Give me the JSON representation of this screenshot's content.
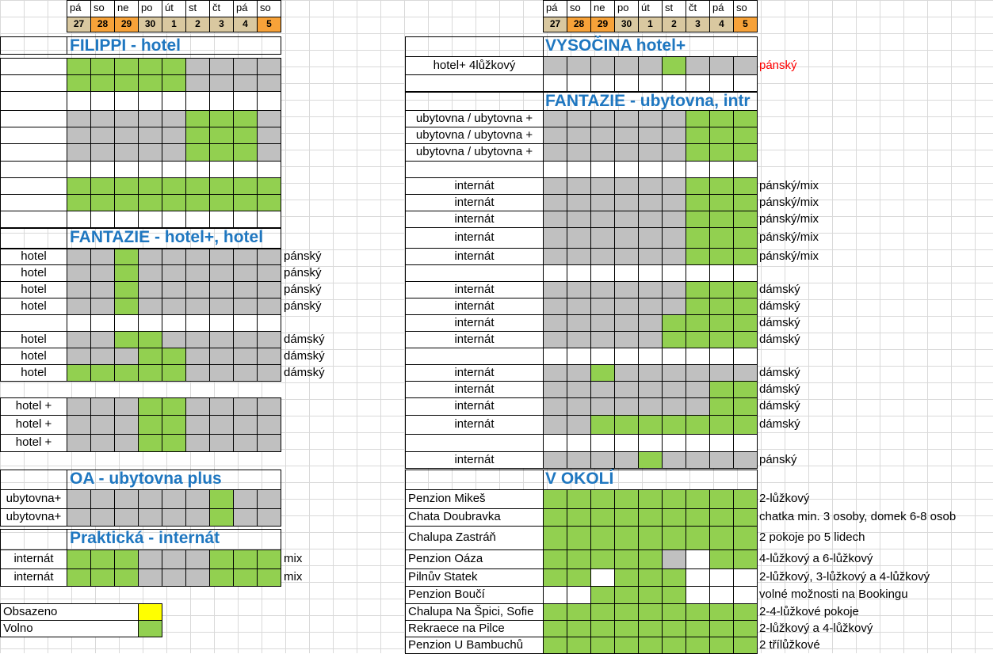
{
  "days": [
    "pá",
    "so",
    "ne",
    "po",
    "út",
    "st",
    "čt",
    "pá",
    "so"
  ],
  "dates": [
    "27",
    "28",
    "29",
    "30",
    "1",
    "2",
    "3",
    "4",
    "5"
  ],
  "date_colors": [
    "#d9c8a0",
    "#f7a239",
    "#f7a239",
    "#d9c8a0",
    "#d9c8a0",
    "#d9c8a0",
    "#d9c8a0",
    "#d9c8a0",
    "#f7a239"
  ],
  "left": {
    "h_filippi": "FILIPPI - hotel",
    "h_fantazie": "FANTAZIE - hotel+, hotel",
    "h_oa": "OA - ubytovna plus",
    "h_prakticka": "Praktická - internát",
    "rows": [
      {
        "label": "",
        "note": "",
        "cells": "ggggg....",
        "y": 73,
        "h": 21
      },
      {
        "label": "",
        "note": "",
        "cells": "ggggg....",
        "y": 94,
        "h": 21
      },
      {
        "label": "",
        "note": "",
        "cells": "wwwwwwwww",
        "y": 115,
        "h": 24
      },
      {
        "label": "",
        "note": "",
        "cells": ".....ggg.",
        "y": 139,
        "h": 21
      },
      {
        "label": "",
        "note": "",
        "cells": ".....ggg.",
        "y": 160,
        "h": 21
      },
      {
        "label": "",
        "note": "",
        "cells": ".....ggg.",
        "y": 181,
        "h": 22
      },
      {
        "label": "",
        "note": "",
        "cells": "wwwwwwwww",
        "y": 203,
        "h": 21
      },
      {
        "label": "",
        "note": "",
        "cells": "ggggggggg",
        "y": 224,
        "h": 21
      },
      {
        "label": "",
        "note": "",
        "cells": "ggggggggg",
        "y": 245,
        "h": 21
      },
      {
        "label": "",
        "note": "",
        "cells": "wwwwwwwww",
        "y": 266,
        "h": 21
      },
      {
        "label": "hotel",
        "note": "pánský",
        "cells": "..g......",
        "y": 313,
        "h": 21
      },
      {
        "label": "hotel",
        "note": "pánský",
        "cells": "..g......",
        "y": 334,
        "h": 21
      },
      {
        "label": "hotel",
        "note": "pánský",
        "cells": "..g......",
        "y": 355,
        "h": 21
      },
      {
        "label": "hotel",
        "note": "pánský",
        "cells": "..g......",
        "y": 376,
        "h": 21
      },
      {
        "label": "",
        "note": "",
        "cells": "wwwwwwwww",
        "y": 397,
        "h": 21
      },
      {
        "label": "hotel",
        "note": "dámský",
        "cells": "..gg.....",
        "y": 418,
        "h": 21
      },
      {
        "label": "hotel",
        "note": "dámský",
        "cells": "...gg....",
        "y": 439,
        "h": 21
      },
      {
        "label": "hotel",
        "note": "dámský",
        "cells": "ggggg....",
        "y": 460,
        "h": 21
      },
      {
        "label": "hotel +",
        "note": "",
        "cells": "...gg....",
        "y": 502,
        "h": 22
      },
      {
        "label": "hotel +",
        "note": "",
        "cells": "...gg....",
        "y": 524,
        "h": 24
      },
      {
        "label": "hotel +",
        "note": "",
        "cells": "...gg....",
        "y": 548,
        "h": 22
      },
      {
        "label": "ubytovna+",
        "note": "",
        "cells": "......g..",
        "y": 618,
        "h": 24
      },
      {
        "label": "ubytovna+",
        "note": "",
        "cells": "......g..",
        "y": 642,
        "h": 22
      },
      {
        "label": "internát",
        "note": "mix",
        "cells": "ggg...ggg",
        "y": 694,
        "h": 24
      },
      {
        "label": "internát",
        "note": "mix",
        "cells": "ggg...ggg",
        "y": 718,
        "h": 22
      }
    ],
    "legend": [
      {
        "label": "Obsazeno",
        "color": "#ffff00"
      },
      {
        "label": "Volno",
        "color": "#92d050"
      }
    ]
  },
  "right": {
    "h_vysocina": "VYSOČINA hotel+",
    "h_fantazie": "FANTAZIE - ubytovna, intr",
    "h_okoli": "V OKOLÍ",
    "rows": [
      {
        "label": "hotel+ 4lůžkový",
        "note": "pánský",
        "note_red": true,
        "cells": ".....g...",
        "y": 71,
        "h": 23
      },
      {
        "label": "",
        "note": "",
        "cells": "wwwwwwwww",
        "y": 94,
        "h": 21
      },
      {
        "label": "ubytovna / ubytovna +",
        "note": "",
        "cells": "......ggg",
        "y": 139,
        "h": 21
      },
      {
        "label": "ubytovna / ubytovna +",
        "note": "",
        "cells": "......ggg",
        "y": 160,
        "h": 21
      },
      {
        "label": "ubytovna / ubytovna +",
        "note": "",
        "cells": "......ggg",
        "y": 181,
        "h": 22
      },
      {
        "label": "",
        "note": "",
        "cells": "wwwwwwwww",
        "y": 203,
        "h": 21
      },
      {
        "label": "internát",
        "note": "pánský/mix",
        "cells": "......ggg",
        "y": 224,
        "h": 21
      },
      {
        "label": "internát",
        "note": "pánský/mix",
        "cells": "......ggg",
        "y": 245,
        "h": 21
      },
      {
        "label": "internát",
        "note": "pánský/mix",
        "cells": "......ggg",
        "y": 266,
        "h": 21
      },
      {
        "label": "internát",
        "note": "pánský/mix",
        "cells": "......ggg",
        "y": 287,
        "h": 26
      },
      {
        "label": "internát",
        "note": "pánský/mix",
        "cells": "......ggg",
        "y": 313,
        "h": 21
      },
      {
        "label": "",
        "note": "",
        "cells": "wwwwwwwww",
        "y": 334,
        "h": 21
      },
      {
        "label": "internát",
        "note": "dámský",
        "cells": "......ggg",
        "y": 355,
        "h": 21
      },
      {
        "label": "internát",
        "note": "dámský",
        "cells": "......ggg",
        "y": 376,
        "h": 21
      },
      {
        "label": "internát",
        "note": "dámský",
        "cells": ".....gggg",
        "y": 397,
        "h": 21
      },
      {
        "label": "internát",
        "note": "dámský",
        "cells": ".....gggg",
        "y": 418,
        "h": 21
      },
      {
        "label": "",
        "note": "",
        "cells": "wwwwwwwww",
        "y": 439,
        "h": 21
      },
      {
        "label": "internát",
        "note": "dámský",
        "cells": "..g......",
        "y": 460,
        "h": 21
      },
      {
        "label": "internát",
        "note": "dámský",
        "cells": ".......gg",
        "y": 481,
        "h": 21
      },
      {
        "label": "internát",
        "note": "dámský",
        "cells": ".......gg",
        "y": 502,
        "h": 22
      },
      {
        "label": "internát",
        "note": "dámský",
        "cells": "..ggggggg",
        "y": 524,
        "h": 24
      },
      {
        "label": "",
        "note": "",
        "cells": "wwwwwwwww",
        "y": 548,
        "h": 22
      },
      {
        "label": "internát",
        "note": "pánský",
        "cells": "....g....",
        "y": 570,
        "h": 21
      },
      {
        "label": "Penzion Mikeš",
        "note": "2-lůžkový",
        "cells": "ggggggggg",
        "y": 618,
        "h": 24
      },
      {
        "label": "Chata Doubravka",
        "note": "chatka min. 3 osoby, domek 6-8 osob",
        "cells": "ggggggggg",
        "y": 642,
        "h": 22
      },
      {
        "label": "Chalupa Zastráň",
        "note": "2 pokoje po 5 lidech",
        "cells": "ggggggggg",
        "y": 664,
        "h": 30
      },
      {
        "label": "Penzion Oáza",
        "note": "4-lůžkový a 6-lůžkový",
        "cells": "ggggg.wgg",
        "y": 694,
        "h": 24
      },
      {
        "label": "Pilnův Statek",
        "note": "2-lůžkový, 3-lůžkový a 4-lůžkový",
        "cells": "ggwgggwww",
        "y": 718,
        "h": 22
      },
      {
        "label": "Penzion Boučí",
        "note": "volné možnosti na Bookingu",
        "cells": "wwggggwww",
        "y": 740,
        "h": 22
      },
      {
        "label": "Chalupa Na Špici, Sofie",
        "note": "2-4-lůžkové pokoje",
        "cells": "ggggggggg",
        "y": 762,
        "h": 21
      },
      {
        "label": "Rekraece na Pilce",
        "note": "2-lůžkový a 4-lůžkový",
        "cells": "ggggggggg",
        "y": 783,
        "h": 21
      },
      {
        "label": "Penzion U Bambuchů",
        "note": "2 třílůžkové",
        "cells": "ggggggggg",
        "y": 804,
        "h": 21
      }
    ]
  }
}
